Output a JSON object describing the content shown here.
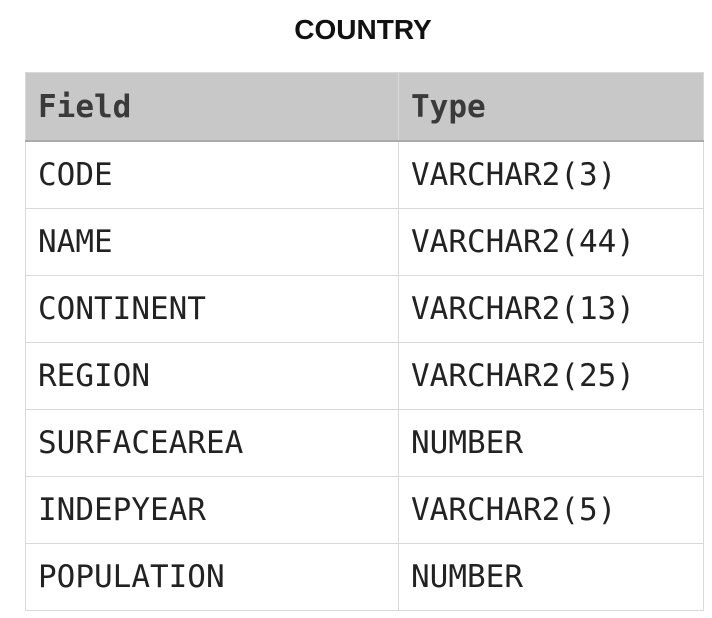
{
  "title": "COUNTRY",
  "table": {
    "header": [
      "Field",
      "Type"
    ],
    "rows": [
      [
        "CODE",
        "VARCHAR2(3)"
      ],
      [
        "NAME",
        "VARCHAR2(44)"
      ],
      [
        "CONTINENT",
        "VARCHAR2(13)"
      ],
      [
        "REGION",
        "VARCHAR2(25)"
      ],
      [
        "SURFACEAREA",
        "NUMBER"
      ],
      [
        "INDEPYEAR",
        "VARCHAR2(5)"
      ],
      [
        "POPULATION",
        "NUMBER"
      ]
    ]
  }
}
